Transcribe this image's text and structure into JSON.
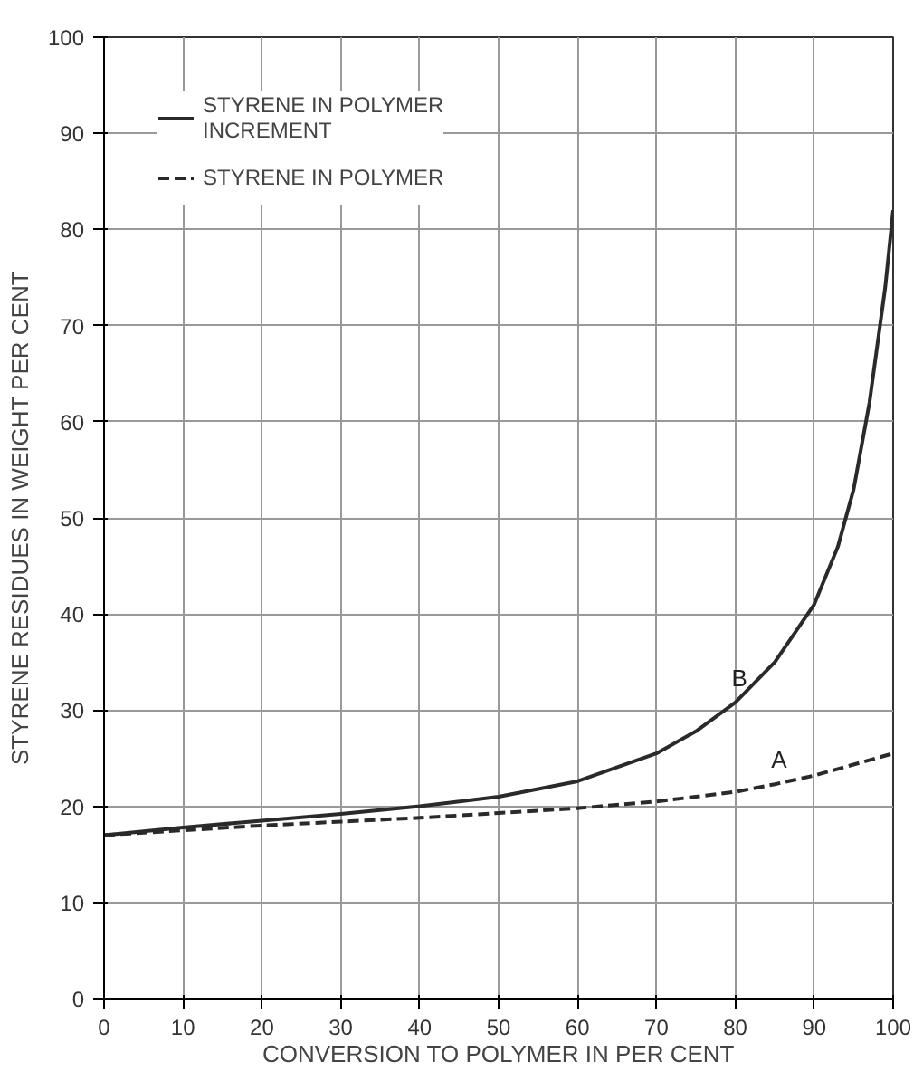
{
  "chart_data": {
    "type": "line",
    "xlabel": "CONVERSION TO POLYMER IN PER CENT",
    "ylabel": "STYRENE RESIDUES IN WEIGHT PER CENT",
    "xlim": [
      0,
      100
    ],
    "ylim": [
      0,
      100
    ],
    "xticks": [
      0,
      10,
      20,
      30,
      40,
      50,
      60,
      70,
      80,
      90,
      100
    ],
    "yticks": [
      0,
      10,
      20,
      30,
      40,
      50,
      60,
      70,
      80,
      90,
      100
    ],
    "grid": true,
    "legend": "top left",
    "series": [
      {
        "name": "STYRENE IN POLYMER\nINCREMENT",
        "color": "#2a2a2a",
        "line_style": "solid",
        "x": [
          0,
          10,
          20,
          30,
          40,
          50,
          60,
          70,
          75,
          80,
          85,
          90,
          93,
          95,
          97,
          98,
          99,
          100
        ],
        "values": [
          17,
          17.8,
          18.5,
          19.2,
          20,
          21,
          22.6,
          25.5,
          27.8,
          30.8,
          35,
          41,
          47,
          53,
          62,
          68,
          74,
          82
        ]
      },
      {
        "name": "STYRENE IN POLYMER",
        "color": "#2a2a2a",
        "line_style": "dashed",
        "x": [
          0,
          10,
          20,
          30,
          40,
          50,
          60,
          70,
          80,
          85,
          90,
          100
        ],
        "values": [
          17,
          17.5,
          18,
          18.4,
          18.8,
          19.3,
          19.8,
          20.5,
          21.5,
          22.3,
          23.2,
          25.5
        ]
      }
    ],
    "annotations": [
      {
        "text": "B",
        "x": 80,
        "y": 30.8
      },
      {
        "text": "A",
        "x": 85,
        "y": 22.3
      }
    ]
  }
}
